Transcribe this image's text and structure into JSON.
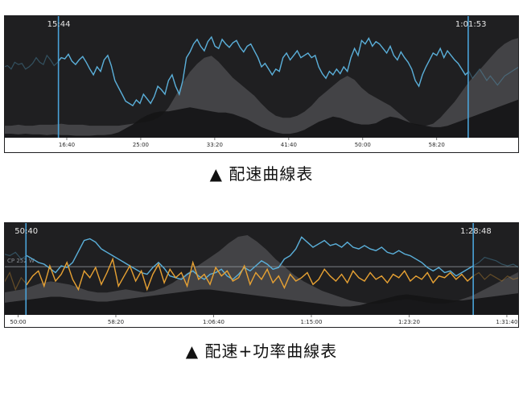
{
  "colors": {
    "panel_bg": "#1f1f21",
    "speed": "#5aaed8",
    "power": "#e5a033",
    "marker": "#4aa3d9",
    "elevation": "#4a4a4c",
    "axis_bg": "#ffffff"
  },
  "chart_data": [
    {
      "type": "line",
      "title": "",
      "caption": "▲ 配速曲線表",
      "x_ticks": [
        "16:40",
        "25:00",
        "33:20",
        "41:40",
        "50:00",
        "58:20"
      ],
      "x_range_minutes": [
        9.6,
        67.6
      ],
      "selection": {
        "start_label": "15:44",
        "end_label": "1:01:53",
        "start_min": 15.73,
        "end_min": 61.88
      },
      "series": [
        {
          "name": "",
          "role": "speed",
          "color": "#5aaed8",
          "values": [
            0.62,
            0.63,
            0.6,
            0.66,
            0.64,
            0.65,
            0.6,
            0.62,
            0.65,
            0.7,
            0.66,
            0.64,
            0.72,
            0.68,
            0.63,
            0.66,
            0.7,
            0.69,
            0.73,
            0.67,
            0.64,
            0.68,
            0.71,
            0.66,
            0.6,
            0.55,
            0.62,
            0.58,
            0.68,
            0.72,
            0.63,
            0.5,
            0.44,
            0.38,
            0.32,
            0.3,
            0.28,
            0.33,
            0.3,
            0.38,
            0.34,
            0.3,
            0.36,
            0.45,
            0.42,
            0.38,
            0.5,
            0.55,
            0.45,
            0.38,
            0.5,
            0.7,
            0.75,
            0.82,
            0.86,
            0.8,
            0.76,
            0.84,
            0.88,
            0.8,
            0.78,
            0.86,
            0.82,
            0.79,
            0.83,
            0.85,
            0.79,
            0.75,
            0.8,
            0.82,
            0.76,
            0.7,
            0.62,
            0.65,
            0.6,
            0.55,
            0.6,
            0.58,
            0.7,
            0.74,
            0.68,
            0.72,
            0.76,
            0.7,
            0.72,
            0.74,
            0.7,
            0.72,
            0.62,
            0.56,
            0.52,
            0.58,
            0.55,
            0.6,
            0.56,
            0.62,
            0.58,
            0.7,
            0.78,
            0.72,
            0.85,
            0.82,
            0.87,
            0.8,
            0.84,
            0.82,
            0.78,
            0.74,
            0.8,
            0.72,
            0.68,
            0.75,
            0.7,
            0.66,
            0.6,
            0.5,
            0.45,
            0.55,
            0.62,
            0.68,
            0.74,
            0.72,
            0.78,
            0.7,
            0.76,
            0.72,
            0.68,
            0.65,
            0.6,
            0.55,
            0.58,
            0.52,
            0.56,
            0.6,
            0.55,
            0.5,
            0.54,
            0.5,
            0.46,
            0.5,
            0.54,
            0.56,
            0.58,
            0.6,
            0.62
          ]
        },
        {
          "name": "",
          "role": "elevation",
          "values": [
            0.12,
            0.12,
            0.13,
            0.12,
            0.12,
            0.13,
            0.13,
            0.13,
            0.14,
            0.13,
            0.13,
            0.13,
            0.12,
            0.12,
            0.12,
            0.12,
            0.12,
            0.13,
            0.14,
            0.15,
            0.16,
            0.18,
            0.22,
            0.3,
            0.42,
            0.55,
            0.66,
            0.74,
            0.8,
            0.82,
            0.76,
            0.68,
            0.6,
            0.54,
            0.48,
            0.42,
            0.34,
            0.27,
            0.22,
            0.2,
            0.2,
            0.22,
            0.26,
            0.32,
            0.4,
            0.46,
            0.52,
            0.58,
            0.62,
            0.58,
            0.5,
            0.44,
            0.4,
            0.36,
            0.32,
            0.26,
            0.2,
            0.14,
            0.12,
            0.12,
            0.14,
            0.2,
            0.28,
            0.36,
            0.46,
            0.56,
            0.64,
            0.72,
            0.8,
            0.88,
            0.94,
            0.98,
            1.0
          ]
        },
        {
          "name": "",
          "role": "min-band",
          "values": [
            0.06,
            0.06,
            0.05,
            0.06,
            0.05,
            0.05,
            0.04,
            0.05,
            0.04,
            0.04,
            0.03,
            0.03,
            0.03,
            0.04,
            0.04,
            0.05,
            0.08,
            0.14,
            0.2,
            0.28,
            0.34,
            0.38,
            0.4,
            0.4,
            0.42,
            0.44,
            0.46,
            0.44,
            0.42,
            0.4,
            0.38,
            0.38,
            0.36,
            0.32,
            0.28,
            0.22,
            0.16,
            0.12,
            0.08,
            0.06,
            0.06,
            0.08,
            0.12,
            0.18,
            0.24,
            0.28,
            0.32,
            0.3,
            0.26,
            0.22,
            0.2,
            0.2,
            0.22,
            0.28,
            0.32,
            0.3,
            0.26,
            0.22,
            0.2,
            0.18,
            0.16,
            0.16,
            0.18,
            0.22,
            0.26,
            0.3,
            0.34,
            0.38,
            0.42,
            0.46,
            0.5,
            0.54,
            0.58
          ]
        }
      ]
    },
    {
      "type": "line",
      "title": "",
      "caption": "▲ 配速+功率曲線表",
      "x_ticks": [
        "50:00",
        "58:20",
        "1:06:40",
        "1:15:00",
        "1:23:20",
        "1:31:40"
      ],
      "x_range_minutes": [
        48.8,
        92.7
      ],
      "selection": {
        "start_label": "50:40",
        "end_label": "1:28:48",
        "start_min": 50.67,
        "end_min": 88.8
      },
      "reference_line": {
        "label": "CP 252 W",
        "value": 0.57
      },
      "series": [
        {
          "name": "",
          "role": "speed",
          "color": "#5aaed8",
          "values": [
            0.72,
            0.7,
            0.74,
            0.66,
            0.7,
            0.66,
            0.62,
            0.6,
            0.55,
            0.5,
            0.58,
            0.56,
            0.62,
            0.75,
            0.88,
            0.9,
            0.86,
            0.78,
            0.74,
            0.7,
            0.66,
            0.62,
            0.58,
            0.54,
            0.5,
            0.48,
            0.56,
            0.62,
            0.55,
            0.46,
            0.44,
            0.42,
            0.48,
            0.52,
            0.46,
            0.42,
            0.48,
            0.5,
            0.54,
            0.46,
            0.42,
            0.48,
            0.56,
            0.52,
            0.58,
            0.64,
            0.6,
            0.54,
            0.56,
            0.66,
            0.7,
            0.78,
            0.92,
            0.86,
            0.8,
            0.84,
            0.88,
            0.82,
            0.84,
            0.8,
            0.86,
            0.8,
            0.78,
            0.82,
            0.78,
            0.76,
            0.8,
            0.74,
            0.72,
            0.76,
            0.72,
            0.7,
            0.66,
            0.62,
            0.56,
            0.52,
            0.56,
            0.5,
            0.52,
            0.46,
            0.5,
            0.54,
            0.58,
            0.62,
            0.68,
            0.66,
            0.64,
            0.6,
            0.58,
            0.6,
            0.56
          ]
        },
        {
          "name": "",
          "role": "power",
          "color": "#e5a033",
          "values": [
            0.38,
            0.5,
            0.3,
            0.44,
            0.36,
            0.46,
            0.52,
            0.34,
            0.58,
            0.4,
            0.48,
            0.62,
            0.42,
            0.3,
            0.52,
            0.44,
            0.56,
            0.36,
            0.5,
            0.66,
            0.34,
            0.46,
            0.58,
            0.4,
            0.52,
            0.3,
            0.48,
            0.6,
            0.38,
            0.54,
            0.44,
            0.5,
            0.34,
            0.62,
            0.42,
            0.48,
            0.36,
            0.56,
            0.46,
            0.52,
            0.4,
            0.44,
            0.58,
            0.36,
            0.5,
            0.42,
            0.54,
            0.38,
            0.46,
            0.32,
            0.48,
            0.4,
            0.44,
            0.5,
            0.36,
            0.42,
            0.54,
            0.46,
            0.4,
            0.48,
            0.38,
            0.52,
            0.44,
            0.4,
            0.5,
            0.42,
            0.46,
            0.38,
            0.48,
            0.44,
            0.52,
            0.4,
            0.46,
            0.42,
            0.5,
            0.38,
            0.46,
            0.44,
            0.5,
            0.42,
            0.48,
            0.4,
            0.46,
            0.5,
            0.42,
            0.48,
            0.44,
            0.4,
            0.46,
            0.42,
            0.44
          ]
        },
        {
          "name": "",
          "role": "elevation",
          "values": [
            0.28,
            0.3,
            0.32,
            0.36,
            0.4,
            0.42,
            0.4,
            0.38,
            0.34,
            0.3,
            0.28,
            0.28,
            0.3,
            0.32,
            0.3,
            0.28,
            0.3,
            0.34,
            0.4,
            0.48,
            0.56,
            0.64,
            0.72,
            0.8,
            0.9,
            0.98,
            1.0,
            0.92,
            0.82,
            0.7,
            0.6,
            0.5,
            0.42,
            0.36,
            0.3,
            0.26,
            0.22,
            0.18,
            0.16,
            0.14,
            0.14,
            0.16,
            0.18,
            0.2,
            0.18,
            0.16,
            0.14,
            0.14,
            0.16,
            0.2,
            0.24,
            0.3,
            0.36,
            0.42,
            0.48,
            0.54
          ]
        },
        {
          "name": "",
          "role": "min-band",
          "values": [
            0.2,
            0.22,
            0.24,
            0.26,
            0.28,
            0.3,
            0.3,
            0.28,
            0.26,
            0.24,
            0.22,
            0.22,
            0.24,
            0.26,
            0.28,
            0.3,
            0.32,
            0.34,
            0.36,
            0.38,
            0.4,
            0.42,
            0.42,
            0.4,
            0.38,
            0.36,
            0.34,
            0.32,
            0.3,
            0.28,
            0.26,
            0.24,
            0.22,
            0.2,
            0.18,
            0.16,
            0.14,
            0.14,
            0.16,
            0.2,
            0.24,
            0.28,
            0.32,
            0.34,
            0.32,
            0.3,
            0.28,
            0.26,
            0.24,
            0.24,
            0.26,
            0.28,
            0.3,
            0.32,
            0.34,
            0.36
          ]
        }
      ]
    }
  ]
}
